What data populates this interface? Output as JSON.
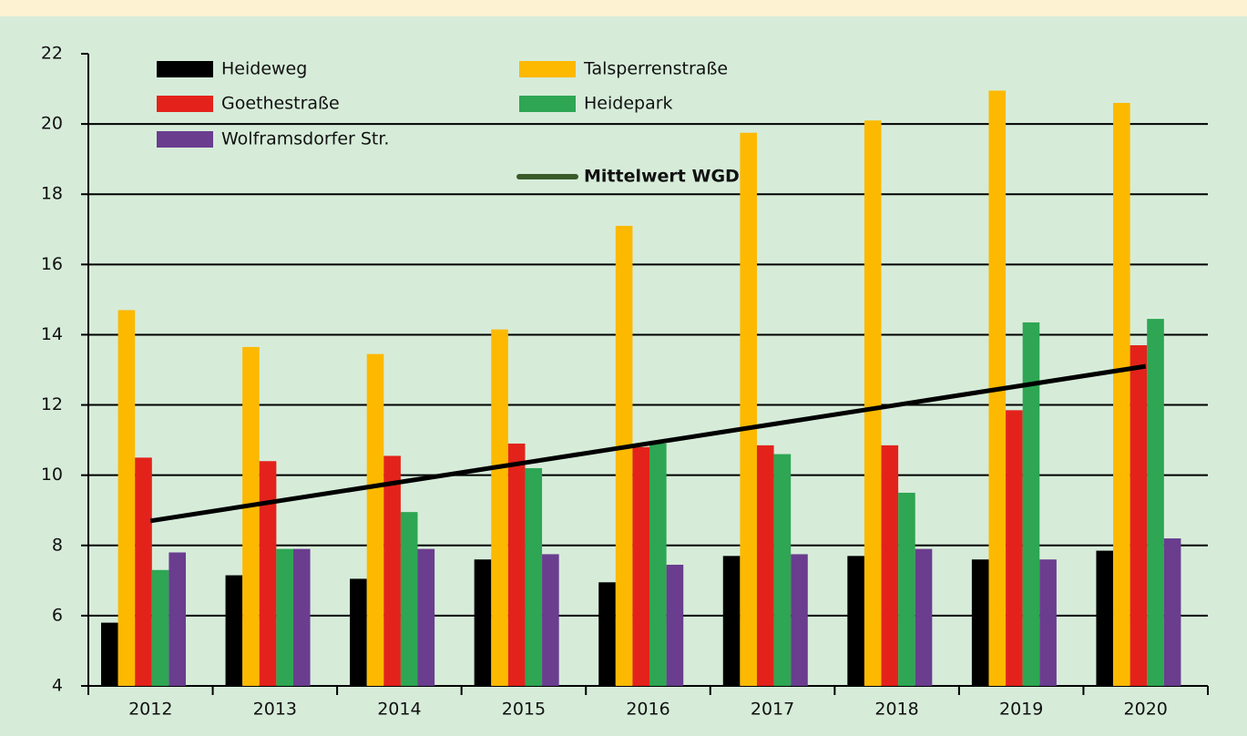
{
  "chart_data": {
    "type": "bar",
    "categories": [
      "2012",
      "2013",
      "2014",
      "2015",
      "2016",
      "2017",
      "2018",
      "2019",
      "2020"
    ],
    "series": [
      {
        "name": "Heideweg",
        "color": "#000000",
        "values": [
          5.8,
          7.15,
          7.05,
          7.6,
          6.95,
          7.7,
          7.7,
          7.6,
          7.85
        ]
      },
      {
        "name": "Talsperrenstraße",
        "color": "#fcb900",
        "values": [
          14.7,
          13.65,
          13.45,
          14.15,
          17.1,
          19.75,
          20.1,
          20.95,
          20.6
        ]
      },
      {
        "name": "Goethestraße",
        "color": "#e3231b",
        "values": [
          10.5,
          10.4,
          10.55,
          10.9,
          10.8,
          10.85,
          10.85,
          11.85,
          13.7
        ]
      },
      {
        "name": "Heidepark",
        "color": "#2ea653",
        "values": [
          7.3,
          7.9,
          8.95,
          10.2,
          10.9,
          10.6,
          9.5,
          14.35,
          14.45
        ]
      },
      {
        "name": "Wolframsdorfer Str.",
        "color": "#6a3d8f",
        "values": [
          7.8,
          7.9,
          7.9,
          7.75,
          7.45,
          7.75,
          7.9,
          7.6,
          8.2
        ]
      },
      {
        "name": "Mittelwert WGD",
        "type": "line",
        "color": "#000000",
        "legend_color": "#3b5a2a",
        "values": [
          8.7,
          9.25,
          9.8,
          10.35,
          10.9,
          11.45,
          12.0,
          12.55,
          13.1
        ]
      }
    ],
    "ylim": [
      4,
      22
    ],
    "yticks": [
      4,
      6,
      8,
      10,
      12,
      14,
      16,
      18,
      20,
      22
    ],
    "grid": true
  }
}
